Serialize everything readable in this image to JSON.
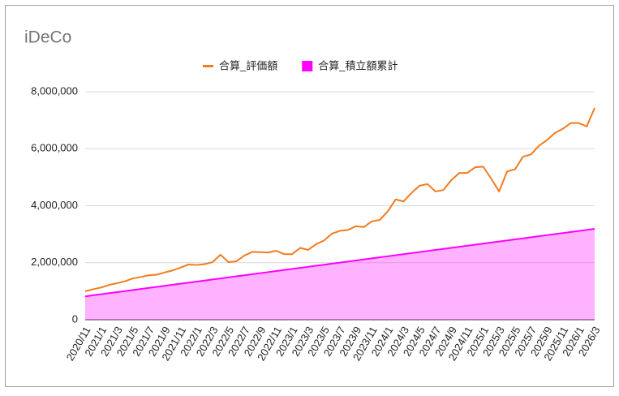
{
  "chart_data": {
    "type": "line",
    "title": "iDeCo",
    "categories": [
      "2020/11",
      null,
      "2021/1",
      null,
      "2021/3",
      null,
      "2021/5",
      null,
      "2021/7",
      null,
      "2021/9",
      null,
      "2021/11",
      null,
      "2022/1",
      null,
      "2022/3",
      null,
      "2022/5",
      null,
      "2022/7",
      null,
      "2022/9",
      null,
      "2022/11",
      null,
      "2023/1",
      null,
      "2023/3",
      null,
      "2023/5",
      null,
      "2023/7",
      null,
      "2023/9",
      null,
      "2023/11",
      null,
      "2024/1",
      null,
      "2024/3",
      null,
      "2024/5",
      null,
      "2024/7",
      null,
      "2024/9",
      null,
      "2024/11",
      null,
      "2025/1",
      null,
      "2025/3",
      null,
      "2025/5",
      null,
      "2025/7",
      null,
      "2025/9",
      null,
      "2025/11",
      null,
      "2026/1",
      null,
      "2026/3"
    ],
    "series": [
      {
        "name": "合算_評価額",
        "type": "line",
        "color": "#f37b1d",
        "values": [
          1000000,
          1070000,
          1130000,
          1220000,
          1280000,
          1350000,
          1450000,
          1500000,
          1560000,
          1580000,
          1660000,
          1730000,
          1830000,
          1940000,
          1920000,
          1950000,
          2020000,
          2280000,
          2020000,
          2050000,
          2250000,
          2380000,
          2370000,
          2360000,
          2420000,
          2300000,
          2300000,
          2520000,
          2450000,
          2650000,
          2780000,
          3020000,
          3120000,
          3150000,
          3280000,
          3250000,
          3450000,
          3500000,
          3800000,
          4220000,
          4150000,
          4450000,
          4700000,
          4760000,
          4500000,
          4550000,
          4900000,
          5150000,
          5150000,
          5350000,
          5370000,
          4950000,
          4500000,
          5200000,
          5280000,
          5720000,
          5800000,
          6100000,
          6300000,
          6550000,
          6700000,
          6900000,
          6900000,
          6780000,
          7430000
        ]
      },
      {
        "name": "合算_積立額累計",
        "type": "area",
        "color": "#ff00ff",
        "values": [
          820000,
          857000,
          894000,
          931000,
          968000,
          1005000,
          1042000,
          1079000,
          1116000,
          1153000,
          1190000,
          1227000,
          1264000,
          1301000,
          1338000,
          1375000,
          1412000,
          1449000,
          1486000,
          1523000,
          1560000,
          1597000,
          1634000,
          1671000,
          1708000,
          1745000,
          1782000,
          1819000,
          1856000,
          1893000,
          1930000,
          1967000,
          2004000,
          2041000,
          2078000,
          2115000,
          2152000,
          2189000,
          2226000,
          2263000,
          2300000,
          2337000,
          2374000,
          2411000,
          2448000,
          2485000,
          2522000,
          2559000,
          2596000,
          2633000,
          2670000,
          2707000,
          2744000,
          2781000,
          2818000,
          2855000,
          2892000,
          2929000,
          2966000,
          3003000,
          3040000,
          3077000,
          3114000,
          3151000,
          3188000
        ]
      }
    ],
    "ylim": [
      0,
      8000000
    ],
    "yticks": [
      0,
      {
        "value": 2000000,
        "label": "2,000,000"
      },
      {
        "value": 4000000,
        "label": "4,000,000"
      },
      {
        "value": 6000000,
        "label": "6,000,000"
      },
      {
        "value": 8000000,
        "label": "8,000,000"
      }
    ],
    "grid": true,
    "legend": "top"
  }
}
